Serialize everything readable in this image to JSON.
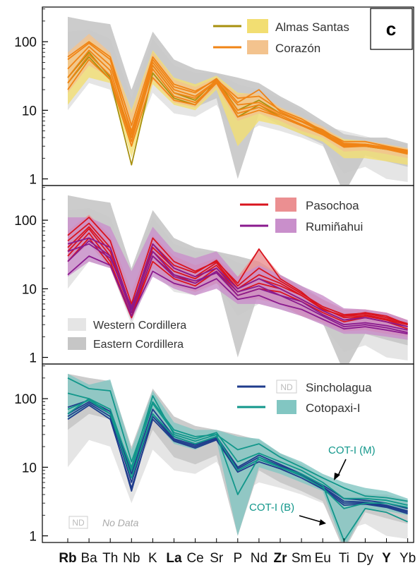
{
  "panel_letter": "c",
  "x_labels": [
    "Rb",
    "Ba",
    "Th",
    "Nb",
    "K",
    "La",
    "Ce",
    "Sr",
    "P",
    "Nd",
    "Zr",
    "Sm",
    "Eu",
    "Ti",
    "Dy",
    "Y",
    "Yb"
  ],
  "bold_labels": [
    "Rb",
    "La",
    "Zr",
    "Y"
  ],
  "y_ticks": [
    "100",
    "10",
    "1"
  ],
  "colors": {
    "western": "#e5e5e5",
    "eastern": "#c6c6c6",
    "almas_line": "#a8900e",
    "almas_fill": "#f2de72",
    "corazon_line": "#f08416",
    "corazon_fill": "#f3c38e",
    "pasochoa_line": "#d9141e",
    "pasochoa_fill": "#eb8f91",
    "rumi_line": "#8a1a8e",
    "rumi_fill": "#c98fcb",
    "sincho_line": "#1f3c8c",
    "coto_line": "#12978b",
    "coto_fill": "#82c6c2"
  },
  "labels": {
    "western": "Western Cordillera",
    "eastern": "Eastern Cordillera",
    "nd": "ND",
    "no_data": "No Data",
    "cot_m": "COT-I (M)",
    "cot_b": "COT-I (B)"
  },
  "chart_data": [
    {
      "type": "line",
      "y_scale": "log",
      "ylim": [
        0.8,
        320
      ],
      "categories": [
        "Rb",
        "Ba",
        "Th",
        "Nb",
        "K",
        "La",
        "Ce",
        "Sr",
        "P",
        "Nd",
        "Zr",
        "Sm",
        "Eu",
        "Ti",
        "Dy",
        "Y",
        "Yb"
      ],
      "legend_position": "top-right",
      "western_range": {
        "lo": [
          10,
          25,
          20,
          3,
          18,
          9,
          8,
          12,
          4,
          6,
          5,
          4,
          3,
          1.2,
          1.5,
          1.0,
          0.9
        ],
        "hi": [
          140,
          150,
          110,
          15,
          110,
          45,
          35,
          35,
          24,
          20,
          15,
          10,
          6,
          5,
          4.2,
          3.5,
          3.2
        ]
      },
      "eastern_range": {
        "lo": [
          35,
          60,
          50,
          6,
          35,
          14,
          11,
          15,
          1,
          9,
          6,
          4.5,
          3.2,
          0.6,
          2.2,
          1.8,
          1.5
        ],
        "hi": [
          230,
          200,
          180,
          20,
          140,
          55,
          40,
          35,
          30,
          25,
          16,
          11,
          7,
          4.5,
          4,
          4,
          3.3
        ]
      },
      "series": [
        {
          "name": "Almas Santas",
          "range_lo": [
            12,
            30,
            25,
            2,
            24,
            12,
            10,
            20,
            3,
            7,
            6,
            4.5,
            3.5,
            2,
            2,
            1.8,
            1.6
          ],
          "range_hi": [
            60,
            110,
            65,
            10,
            75,
            30,
            24,
            32,
            18,
            17,
            11,
            8,
            5.5,
            3.8,
            3.6,
            3.2,
            2.8
          ],
          "samples": [
            [
              25,
              60,
              28,
              1.6,
              35,
              15,
              12,
              27,
              8,
              12,
              8,
              6,
              4.8,
              3.2,
              3.1,
              2.8,
              2.5
            ],
            [
              30,
              70,
              30,
              4,
              45,
              18,
              14,
              28,
              10,
              14,
              9,
              7,
              5,
              3,
              3,
              2.7,
              2.4
            ]
          ]
        },
        {
          "name": "Corazón",
          "range_lo": [
            18,
            45,
            30,
            3,
            28,
            13,
            11,
            22,
            7,
            9,
            7,
            5,
            4,
            2.5,
            2.6,
            2.3,
            2
          ],
          "range_hi": [
            70,
            130,
            70,
            9,
            70,
            28,
            22,
            30,
            17,
            18,
            11,
            8,
            5.8,
            3.6,
            3.6,
            3.2,
            2.8
          ],
          "samples": [
            [
              20,
              55,
              28,
              3,
              30,
              14,
              12,
              25,
              8,
              10,
              8,
              6,
              4.5,
              3,
              3,
              2.8,
              2.4
            ],
            [
              60,
              100,
              60,
              6,
              60,
              24,
              19,
              28,
              15,
              16,
              10,
              7.5,
              5,
              3.5,
              3.5,
              3,
              2.6
            ],
            [
              40,
              85,
              45,
              5,
              50,
              20,
              16,
              27,
              12,
              13,
              9,
              6.8,
              4.8,
              3.2,
              3.2,
              2.9,
              2.5
            ],
            [
              30,
              75,
              38,
              4,
              45,
              18,
              15,
              26,
              10,
              12,
              8.5,
              6.2,
              4.6,
              3.1,
              3.1,
              2.8,
              2.4
            ],
            [
              55,
              95,
              55,
              4.5,
              55,
              22,
              18,
              29,
              13,
              20,
              9.5,
              7,
              5.2,
              3.3,
              3.2,
              2.9,
              2.6
            ],
            [
              25,
              65,
              32,
              3.5,
              40,
              16,
              13,
              25,
              9,
              11,
              8,
              6,
              4.4,
              2.9,
              3,
              2.7,
              2.3
            ]
          ]
        }
      ]
    },
    {
      "type": "line",
      "y_scale": "log",
      "ylim": [
        0.8,
        320
      ],
      "categories": [
        "Rb",
        "Ba",
        "Th",
        "Nb",
        "K",
        "La",
        "Ce",
        "Sr",
        "P",
        "Nd",
        "Zr",
        "Sm",
        "Eu",
        "Ti",
        "Dy",
        "Y",
        "Yb"
      ],
      "legend_position": "top-right",
      "western_range": {
        "lo": [
          10,
          25,
          20,
          3,
          18,
          9,
          8,
          12,
          4,
          6,
          5,
          4,
          3,
          1.2,
          1.5,
          1.0,
          0.9
        ],
        "hi": [
          140,
          150,
          110,
          15,
          110,
          45,
          35,
          35,
          24,
          20,
          15,
          10,
          6,
          5,
          4.2,
          3.5,
          3.2
        ]
      },
      "eastern_range": {
        "lo": [
          35,
          60,
          50,
          6,
          35,
          14,
          11,
          15,
          1,
          9,
          6,
          4.5,
          3.2,
          0.6,
          2.2,
          1.8,
          1.5
        ],
        "hi": [
          230,
          200,
          180,
          20,
          140,
          55,
          40,
          35,
          30,
          25,
          16,
          11,
          7,
          4.5,
          4,
          4,
          3.3
        ]
      },
      "series": [
        {
          "name": "Pasochoa",
          "range_lo": [
            25,
            45,
            20,
            3.5,
            20,
            11,
            9,
            12,
            7,
            7,
            6,
            4,
            3.2,
            2.4,
            2.5,
            2.2,
            2
          ],
          "range_hi": [
            70,
            120,
            60,
            9,
            60,
            30,
            22,
            28,
            15,
            38,
            16,
            10,
            7,
            5,
            5,
            4.5,
            3.5
          ],
          "samples": [
            [
              60,
              110,
              50,
              6,
              55,
              25,
              18,
              25,
              12,
              38,
              14,
              9,
              5,
              4,
              4.5,
              4,
              3
            ],
            [
              35,
              75,
              30,
              5,
              35,
              18,
              14,
              22,
              10,
              14,
              11,
              8,
              5,
              4,
              4.2,
              3.6,
              3
            ],
            [
              30,
              65,
              25,
              4,
              30,
              16,
              12,
              20,
              9,
              12,
              10,
              7,
              4.8,
              3.5,
              4,
              3.5,
              2.8
            ],
            [
              40,
              80,
              35,
              4.5,
              40,
              20,
              15,
              24,
              10,
              16,
              12,
              8,
              5.2,
              3.8,
              4,
              3.6,
              3
            ],
            [
              25,
              55,
              22,
              3.8,
              25,
              14,
              11,
              18,
              8,
              10,
              9,
              6.5,
              4.5,
              3.3,
              3.8,
              3.3,
              2.6
            ],
            [
              50,
              90,
              40,
              5,
              45,
              22,
              17,
              26,
              11,
              20,
              13,
              8.5,
              5.5,
              4.2,
              4.4,
              3.8,
              3.1
            ]
          ]
        },
        {
          "name": "Rumiñahui",
          "range_lo": [
            15,
            25,
            20,
            3.5,
            15,
            10,
            8,
            10,
            6,
            6,
            5,
            4,
            3,
            2.2,
            2.2,
            2,
            1.8
          ],
          "range_hi": [
            110,
            110,
            80,
            18,
            80,
            35,
            28,
            35,
            15,
            22,
            16,
            11,
            8,
            5.2,
            5,
            4.5,
            3.5
          ],
          "samples": [
            [
              16,
              30,
              22,
              4,
              18,
              12,
              10,
              14,
              7,
              8,
              6,
              5,
              3.6,
              2.6,
              2.8,
              2.5,
              2.2
            ],
            [
              25,
              50,
              30,
              4.5,
              30,
              15,
              12,
              18,
              9,
              11,
              8,
              6.5,
              4.2,
              3,
              3.2,
              2.9,
              2.5
            ],
            [
              45,
              55,
              40,
              5,
              45,
              20,
              15,
              20,
              10,
              14,
              10,
              7,
              4.8,
              3.5,
              3.8,
              3.3,
              2.8
            ],
            [
              35,
              45,
              28,
              5.5,
              35,
              16,
              13,
              17,
              8,
              10,
              8,
              5.8,
              4,
              2.8,
              3,
              2.7,
              2.3
            ]
          ]
        }
      ]
    },
    {
      "type": "line",
      "y_scale": "log",
      "ylim": [
        0.8,
        320
      ],
      "categories": [
        "Rb",
        "Ba",
        "Th",
        "Nb",
        "K",
        "La",
        "Ce",
        "Sr",
        "P",
        "Nd",
        "Zr",
        "Sm",
        "Eu",
        "Ti",
        "Dy",
        "Y",
        "Yb"
      ],
      "legend_position": "top-right",
      "western_range": {
        "lo": [
          10,
          25,
          20,
          3,
          18,
          9,
          8,
          12,
          4,
          6,
          5,
          4,
          3,
          1.2,
          1.5,
          1.0,
          0.9
        ],
        "hi": [
          140,
          150,
          110,
          15,
          110,
          45,
          35,
          35,
          24,
          20,
          15,
          10,
          6,
          5,
          4.2,
          3.5,
          3.2
        ]
      },
      "eastern_range": {
        "lo": [
          35,
          60,
          50,
          6,
          35,
          14,
          11,
          15,
          1,
          9,
          6,
          4.5,
          3.2,
          0.6,
          2.2,
          1.8,
          1.5
        ],
        "hi": [
          230,
          200,
          180,
          20,
          140,
          55,
          40,
          35,
          30,
          25,
          16,
          11,
          7,
          4.5,
          4,
          4,
          3.3
        ]
      },
      "series": [
        {
          "name": "Sincholagua",
          "nd": true,
          "samples": [
            [
              55,
              85,
              55,
              4.5,
              55,
              25,
              20,
              26,
              9,
              13,
              10,
              7.5,
              5,
              3,
              3,
              2.7,
              2.2
            ],
            [
              75,
              95,
              65,
              8,
              70,
              28,
              22,
              28,
              10,
              15,
              11,
              8,
              5.5,
              3.5,
              3.3,
              3,
              2.5
            ],
            [
              60,
              90,
              60,
              6,
              60,
              26,
              21,
              27,
              9.5,
              14,
              10.5,
              7.8,
              5.2,
              3.2,
              3.1,
              2.8,
              2.3
            ],
            [
              50,
              80,
              50,
              5,
              50,
              24,
              19,
              25,
              8.5,
              12,
              9.5,
              7,
              4.8,
              2.8,
              2.9,
              2.6,
              2.1
            ]
          ]
        },
        {
          "name": "Cotopaxi-I",
          "range_lo": [
            50,
            80,
            50,
            6,
            50,
            22,
            18,
            25,
            1,
            10,
            8,
            6,
            4.5,
            0.65,
            2.5,
            2.3,
            2
          ],
          "range_hi": [
            230,
            160,
            190,
            18,
            130,
            45,
            35,
            35,
            28,
            26,
            16,
            12,
            8,
            6,
            5,
            4.5,
            3.5
          ],
          "samples": [
            [
              200,
              140,
              130,
              12,
              90,
              35,
              28,
              30,
              18,
              22,
              14,
              10,
              7,
              5,
              3.8,
              3.6,
              3.2
            ],
            [
              60,
              100,
              70,
              9,
              85,
              32,
              26,
              32,
              12,
              16,
              12,
              9,
              6,
              3.5,
              3.5,
              3.3,
              2.8
            ],
            [
              120,
              100,
              60,
              10,
              110,
              30,
              24,
              30,
              4,
              14,
              10,
              8,
              5.5,
              0.85,
              2.5,
              2.2,
              1.6
            ],
            [
              70,
              95,
              60,
              7,
              60,
              28,
              22,
              28,
              9,
              13,
              10,
              7.5,
              5,
              2.5,
              3,
              3,
              2.6
            ]
          ]
        }
      ]
    }
  ]
}
